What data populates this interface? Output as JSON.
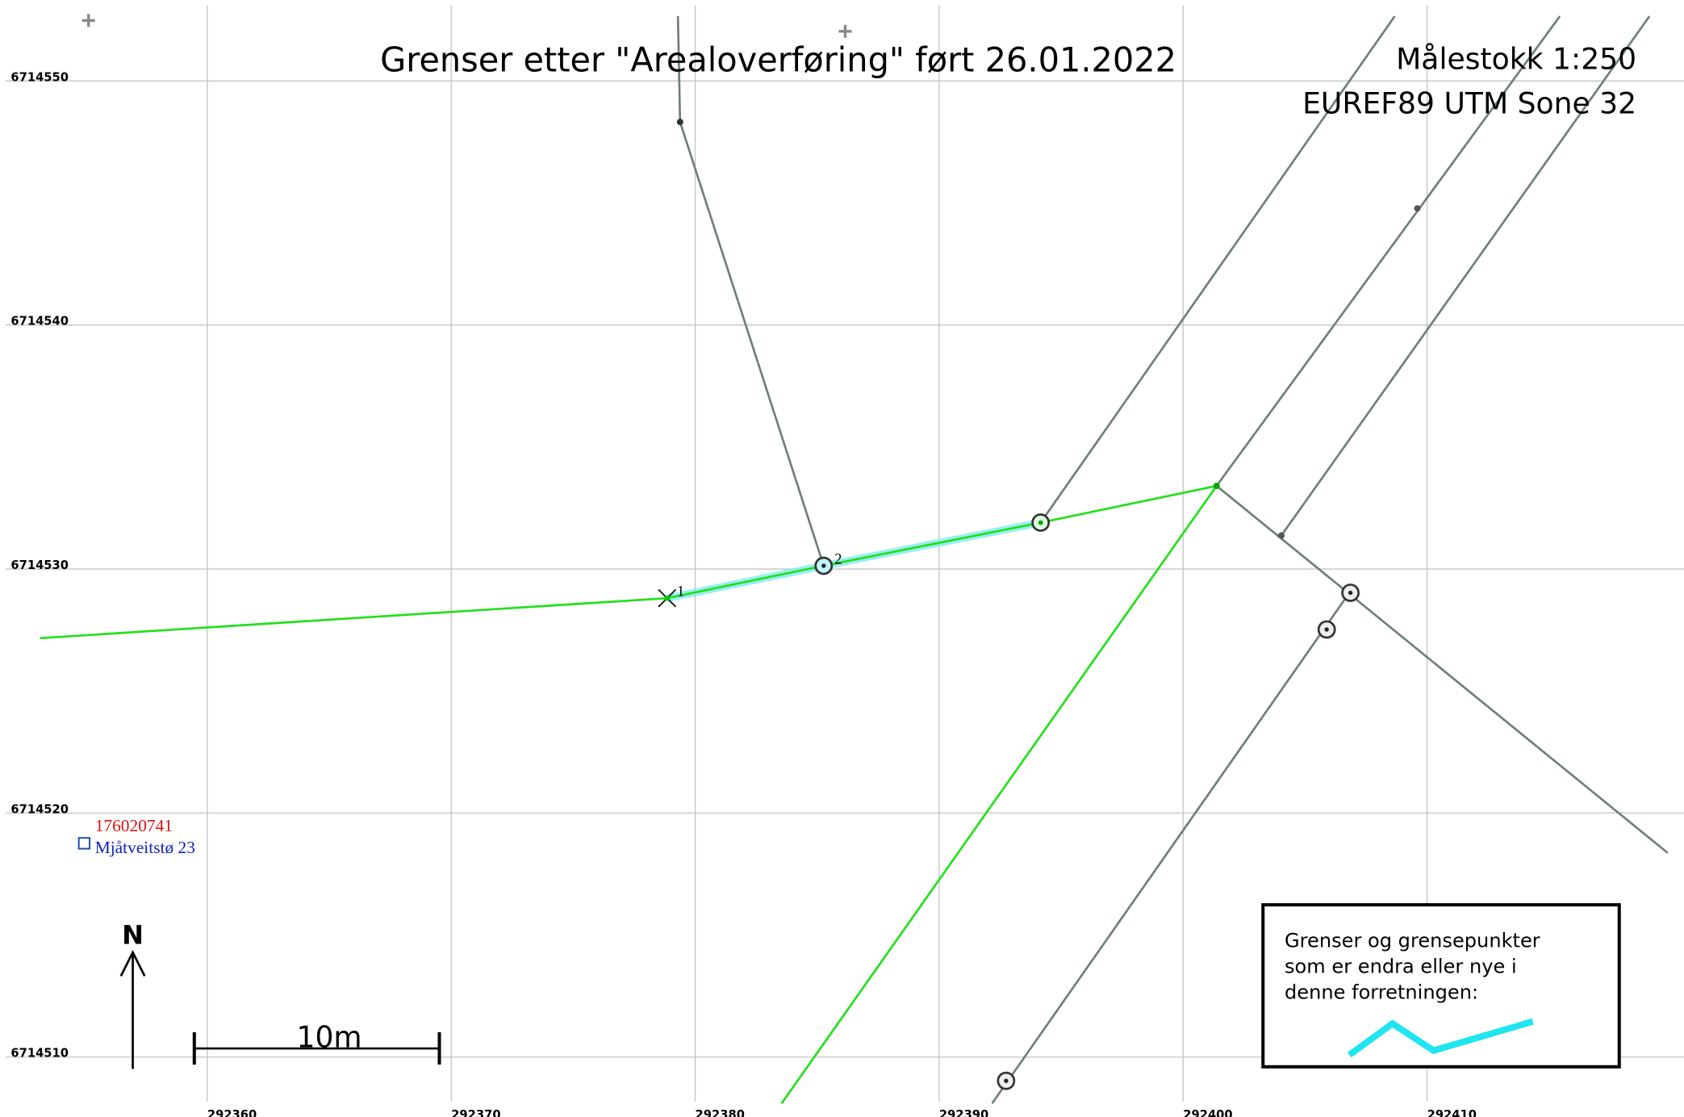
{
  "header": {
    "title": "Grenser etter \"Arealoverføring\" ført 26.01.2022",
    "scale": "Målestokk 1:250",
    "crs": "EUREF89 UTM Sone 32"
  },
  "grid": {
    "eastings": [
      292360,
      292370,
      292380,
      292390,
      292400,
      292410
    ],
    "northings": [
      6714550,
      6714540,
      6714530,
      6714520,
      6714510
    ]
  },
  "points": [
    {
      "label": "1"
    },
    {
      "label": "2"
    }
  ],
  "parcel": {
    "id": "176020741",
    "address": "Mjåtveitstø 23"
  },
  "north": "N",
  "scalebar": "10m",
  "legend": {
    "lines": [
      "Grenser og grensepunkter",
      "som er endra eller nye i",
      "denne forretningen:"
    ]
  }
}
